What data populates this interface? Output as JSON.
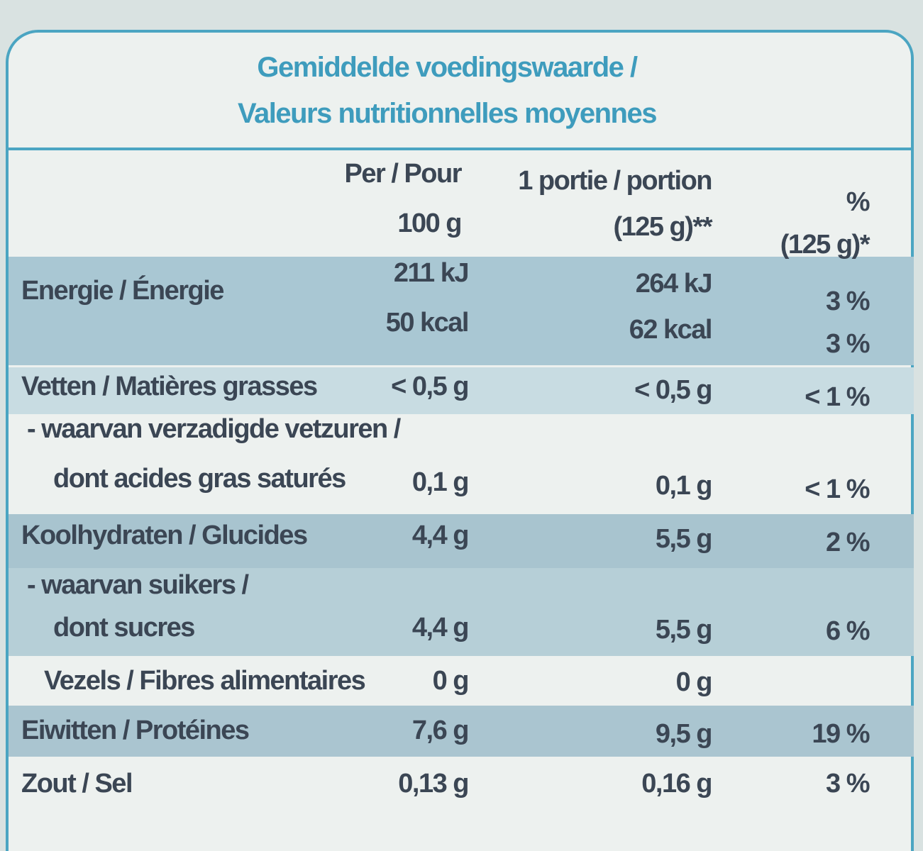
{
  "header": {
    "title": [
      "Gemiddelde voedingswaarde /",
      "Valeurs nutritionnelles moyennes"
    ]
  },
  "columns": [
    {
      "lines": [
        "Per / Pour",
        "100 g"
      ]
    },
    {
      "lines": [
        "1 portie / portion",
        "(125 g)**"
      ]
    },
    {
      "lines": [
        "%",
        "(125 g)*"
      ]
    }
  ],
  "rows": [
    {
      "label": [
        "Energie / Énergie"
      ],
      "per100": [
        "211 kJ",
        "50 kcal"
      ],
      "portion": [
        "264 kJ",
        "62 kcal"
      ],
      "percent": [
        "3 %",
        "3 %"
      ]
    },
    {
      "label": [
        "Vetten / Matières grasses"
      ],
      "per100": [
        "< 0,5 g"
      ],
      "portion": [
        "< 0,5 g"
      ],
      "percent": [
        "< 1 %"
      ]
    },
    {
      "label": [
        "- waarvan verzadigde vetzuren /",
        "dont acides gras saturés"
      ],
      "per100": [
        "0,1 g"
      ],
      "portion": [
        "0,1 g"
      ],
      "percent": [
        "< 1 %"
      ]
    },
    {
      "label": [
        "Koolhydraten / Glucides"
      ],
      "per100": [
        "4,4 g"
      ],
      "portion": [
        "5,5 g"
      ],
      "percent": [
        "2 %"
      ]
    },
    {
      "label": [
        "- waarvan suikers /",
        "dont sucres"
      ],
      "per100": [
        "4,4 g"
      ],
      "portion": [
        "5,5 g"
      ],
      "percent": [
        "6 %"
      ]
    },
    {
      "label": [
        "Vezels / Fibres alimentaires"
      ],
      "per100": [
        "0 g"
      ],
      "portion": [
        "0 g"
      ]
    },
    {
      "label": [
        "Eiwitten / Protéines"
      ],
      "per100": [
        "7,6 g"
      ],
      "portion": [
        "9,5 g"
      ],
      "percent": [
        "19 %"
      ]
    },
    {
      "label": [
        "Zout / Sel"
      ],
      "per100": [
        "0,13 g"
      ],
      "portion": [
        "0,16 g"
      ],
      "percent": [
        "3 %"
      ]
    }
  ]
}
